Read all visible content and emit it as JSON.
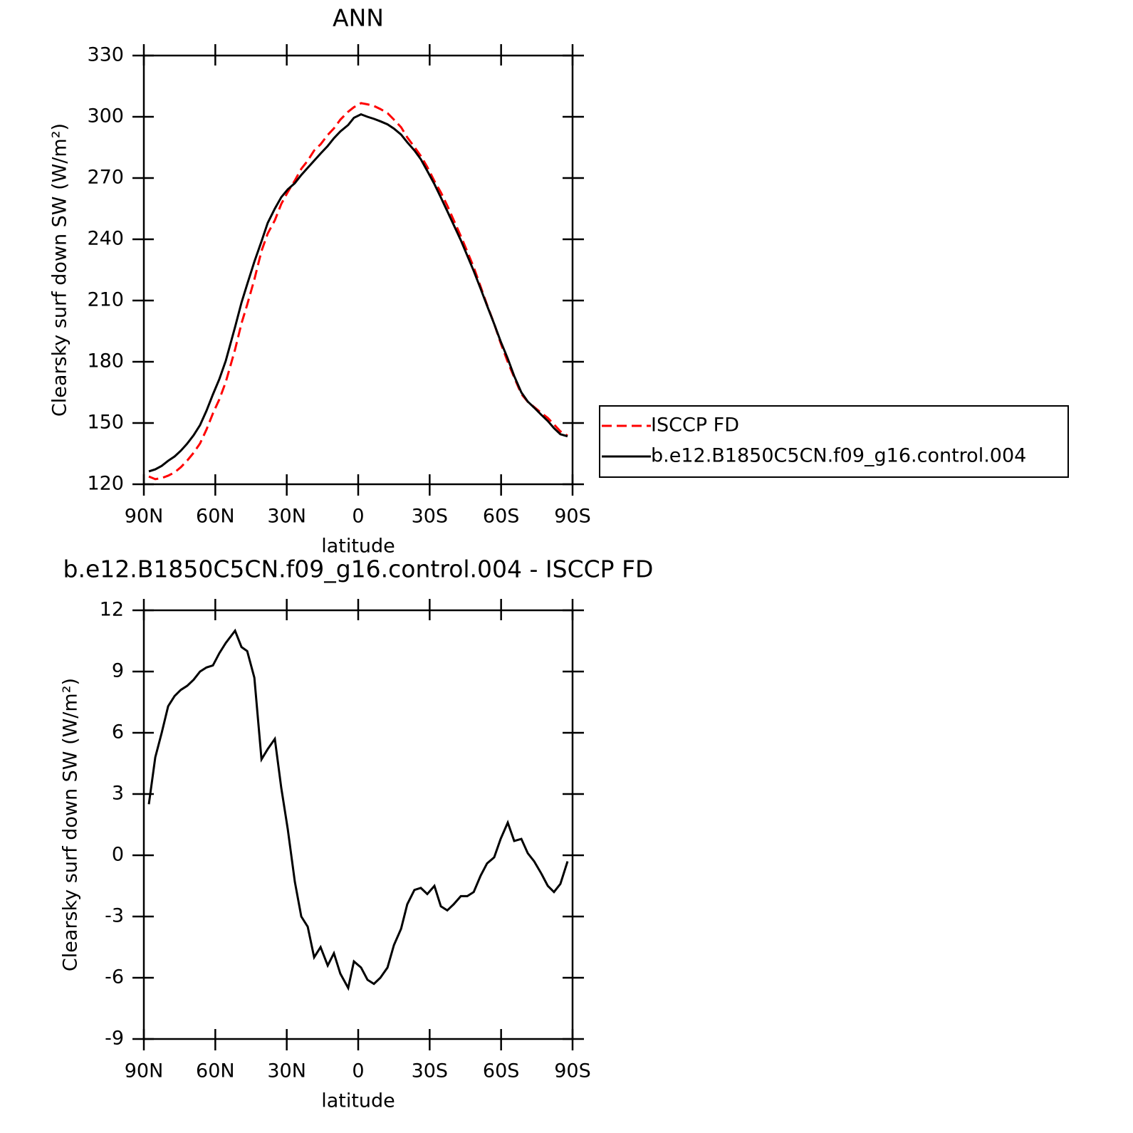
{
  "chart_data": [
    {
      "type": "line",
      "title": "ANN",
      "xlabel": "latitude",
      "ylabel": "Clearsky surf down SW (W/m²)",
      "x": [
        87.9,
        85.2,
        82.5,
        79.8,
        77.1,
        74.5,
        71.8,
        69.1,
        66.4,
        63.7,
        61.0,
        58.3,
        55.6,
        51.7,
        49.0,
        46.6,
        43.6,
        40.6,
        38.0,
        35.0,
        32.3,
        29.6,
        26.6,
        23.9,
        21.2,
        18.5,
        15.8,
        12.8,
        10.2,
        7.5,
        4.2,
        1.8,
        -1.2,
        -3.9,
        -6.6,
        -9.3,
        -12.3,
        -15.0,
        -18.0,
        -20.6,
        -23.6,
        -26.3,
        -29.0,
        -32.0,
        -34.7,
        -37.4,
        -40.1,
        -43.1,
        -45.8,
        -48.5,
        -51.4,
        -54.1,
        -57.1,
        -59.8,
        -62.8,
        -65.5,
        -68.5,
        -71.2,
        -73.9,
        -76.9,
        -79.6,
        -82.2,
        -84.9,
        -87.9
      ],
      "series": [
        {
          "name": "ISCCP FD",
          "color": "#ff0000",
          "dashed": true,
          "values": [
            123.8,
            122.5,
            123,
            124.2,
            125.8,
            128.3,
            131.6,
            135.4,
            140,
            146.8,
            154.7,
            161.6,
            170.1,
            186,
            198.8,
            208,
            220.3,
            234.3,
            242.8,
            249.3,
            257.3,
            263.1,
            268.8,
            274.5,
            278.5,
            283.5,
            286.5,
            291.1,
            294.3,
            298.6,
            302.5,
            304.7,
            306.7,
            306.1,
            305.3,
            303.8,
            301.8,
            298.6,
            294.9,
            289.9,
            285.2,
            280.8,
            275.4,
            268.5,
            263,
            256.5,
            249.4,
            241.5,
            234,
            226.3,
            216.8,
            207.9,
            198.6,
            189.2,
            179.9,
            172.3,
            164.2,
            160.4,
            157.8,
            154.9,
            152.5,
            149.3,
            145.9,
            143.8
          ]
        },
        {
          "name": "b.e12.B1850C5CN.f09_g16.control.004",
          "color": "#000000",
          "dashed": false,
          "values": [
            126.3,
            127.3,
            129,
            131.5,
            133.6,
            136.4,
            139.9,
            144,
            149,
            156,
            164,
            171.5,
            180.5,
            197,
            209,
            218,
            229,
            239,
            248,
            255,
            260.6,
            264.4,
            267.5,
            271.5,
            275,
            278.5,
            282,
            285.7,
            289.5,
            292.8,
            296,
            299.5,
            301.2,
            300,
            299,
            297.8,
            296.3,
            294.2,
            291.3,
            287.5,
            283.5,
            279.2,
            273.5,
            267,
            260.5,
            253.8,
            247,
            239.5,
            232,
            224.5,
            215.8,
            207.5,
            198.5,
            190,
            181.5,
            173,
            165,
            160.5,
            157.5,
            154,
            151,
            147.5,
            144.5,
            143.5
          ]
        }
      ],
      "xlim": [
        90,
        -90
      ],
      "xticks": [
        {
          "value": 90,
          "label": "90N"
        },
        {
          "value": 60,
          "label": "60N"
        },
        {
          "value": 30,
          "label": "30N"
        },
        0,
        {
          "value": -30,
          "label": "30S"
        },
        {
          "value": -60,
          "label": "60S"
        },
        {
          "value": -90,
          "label": "90S"
        }
      ],
      "ylim": [
        120,
        330
      ],
      "yticks": [
        120,
        150,
        180,
        210,
        240,
        270,
        300,
        330
      ],
      "legend": "right"
    },
    {
      "type": "line",
      "title": "b.e12.B1850C5CN.f09_g16.control.004 - ISCCP FD",
      "xlabel": "latitude",
      "ylabel": "Clearsky surf down SW (W/m²)",
      "x": [
        87.9,
        85.2,
        82.5,
        79.8,
        77.1,
        74.5,
        71.8,
        69.1,
        66.4,
        63.7,
        61.0,
        58.3,
        55.6,
        51.7,
        49.0,
        46.6,
        43.6,
        40.6,
        38.0,
        35.0,
        32.3,
        29.6,
        26.6,
        23.9,
        21.2,
        18.5,
        15.8,
        12.8,
        10.2,
        7.5,
        4.2,
        1.8,
        -1.2,
        -3.9,
        -6.6,
        -9.3,
        -12.3,
        -15.0,
        -18.0,
        -20.6,
        -23.6,
        -26.3,
        -29.0,
        -32.0,
        -34.7,
        -37.4,
        -40.1,
        -43.1,
        -45.8,
        -48.5,
        -51.4,
        -54.1,
        -57.1,
        -59.8,
        -62.8,
        -65.5,
        -68.5,
        -71.2,
        -73.9,
        -76.9,
        -79.6,
        -82.2,
        -84.9,
        -87.9
      ],
      "color": "#000000",
      "values": [
        2.5,
        4.8,
        6.0,
        7.3,
        7.8,
        8.1,
        8.3,
        8.6,
        9.0,
        9.2,
        9.3,
        9.9,
        10.4,
        11.0,
        10.2,
        10.0,
        8.7,
        4.7,
        5.2,
        5.7,
        3.3,
        1.3,
        -1.3,
        -3.0,
        -3.5,
        -5.0,
        -4.5,
        -5.4,
        -4.8,
        -5.8,
        -6.5,
        -5.2,
        -5.5,
        -6.1,
        -6.3,
        -6.0,
        -5.5,
        -4.4,
        -3.6,
        -2.4,
        -1.7,
        -1.6,
        -1.9,
        -1.5,
        -2.5,
        -2.7,
        -2.4,
        -2.0,
        -2.0,
        -1.8,
        -1.0,
        -0.4,
        -0.1,
        0.8,
        1.6,
        0.7,
        0.8,
        0.1,
        -0.3,
        -0.9,
        -1.5,
        -1.8,
        -1.4,
        -0.3
      ],
      "xlim": [
        90,
        -90
      ],
      "xticks": [
        {
          "value": 90,
          "label": "90N"
        },
        {
          "value": 60,
          "label": "60N"
        },
        {
          "value": 30,
          "label": "30N"
        },
        0,
        {
          "value": -30,
          "label": "30S"
        },
        {
          "value": -60,
          "label": "60S"
        },
        {
          "value": -90,
          "label": "90S"
        }
      ],
      "ylim": [
        -9,
        12
      ],
      "yticks": [
        -9,
        -6,
        -3,
        0,
        3,
        6,
        9,
        12
      ]
    }
  ]
}
